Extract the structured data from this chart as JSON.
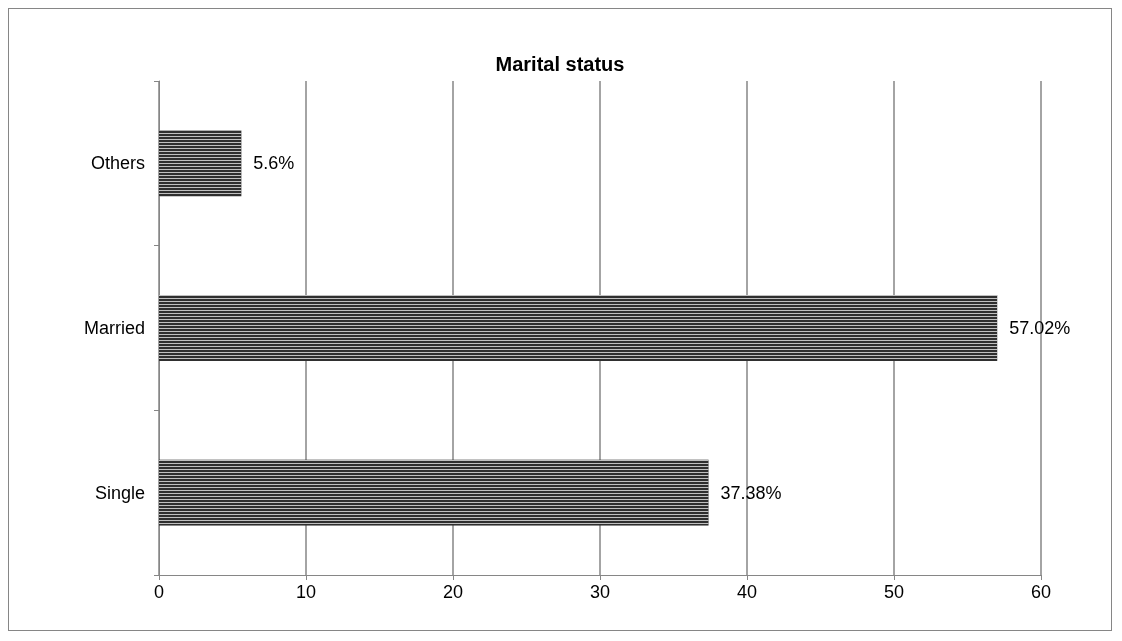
{
  "chart_data": {
    "type": "bar",
    "orientation": "horizontal",
    "title": "Marital status",
    "categories": [
      "Others",
      "Married",
      "Single"
    ],
    "values": [
      5.6,
      57.02,
      37.38
    ],
    "value_labels": [
      "5.6%",
      "57.02%",
      "37.38%"
    ],
    "color": "#000000",
    "xlim": [
      0,
      60
    ],
    "xticks": [
      0,
      10,
      20,
      30,
      40,
      50,
      60
    ],
    "grid": "x"
  }
}
